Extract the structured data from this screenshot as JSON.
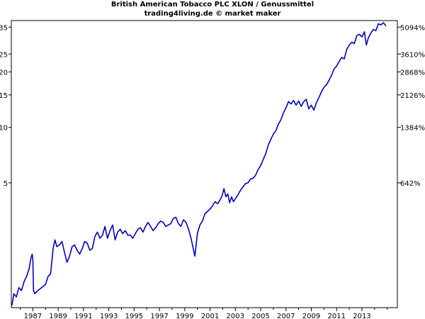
{
  "header": {
    "title": "British American Tobacco PLC XLON / Genussmittel",
    "subtitle": "trading4living.de © market maker"
  },
  "chart_data": {
    "type": "line",
    "scale": "log",
    "grid": false,
    "line_color": "#0000cc",
    "xlim": [
      1985.3,
      2015.8
    ],
    "ylim": [
      1.05,
      38
    ],
    "x_ticks": [
      1987,
      1989,
      1991,
      1993,
      1995,
      1997,
      1999,
      2001,
      2003,
      2005,
      2007,
      2009,
      2011,
      2013
    ],
    "x_tick_labels": [
      "1987",
      "1989",
      "1991",
      "1993",
      "1995",
      "1997",
      "1999",
      "2001",
      "2003",
      "2005",
      "2007",
      "2009",
      "2011",
      "2013"
    ],
    "y_ticks_left": [
      {
        "value": 35,
        "label": "35"
      },
      {
        "value": 25,
        "label": "25"
      },
      {
        "value": 20,
        "label": "20"
      },
      {
        "value": 15,
        "label": "15"
      },
      {
        "value": 10,
        "label": "10"
      },
      {
        "value": 5,
        "label": "5"
      }
    ],
    "y_ticks_right": [
      {
        "value": 35,
        "label": "5094%"
      },
      {
        "value": 25,
        "label": "3610%"
      },
      {
        "value": 20,
        "label": "2868%"
      },
      {
        "value": 15,
        "label": "2126%"
      },
      {
        "value": 10,
        "label": "1384%"
      },
      {
        "value": 5,
        "label": "642%"
      }
    ],
    "series": [
      {
        "values": [
          [
            1985.35,
            1.08
          ],
          [
            1985.5,
            1.25
          ],
          [
            1985.7,
            1.2
          ],
          [
            1985.9,
            1.35
          ],
          [
            1986.1,
            1.3
          ],
          [
            1986.3,
            1.45
          ],
          [
            1986.5,
            1.55
          ],
          [
            1986.7,
            1.7
          ],
          [
            1986.85,
            1.95
          ],
          [
            1986.95,
            2.05
          ],
          [
            1987.0,
            1.9
          ],
          [
            1987.05,
            1.3
          ],
          [
            1987.15,
            1.25
          ],
          [
            1987.4,
            1.3
          ],
          [
            1987.7,
            1.35
          ],
          [
            1988.0,
            1.4
          ],
          [
            1988.2,
            1.55
          ],
          [
            1988.4,
            1.6
          ],
          [
            1988.6,
            2.2
          ],
          [
            1988.75,
            2.45
          ],
          [
            1988.9,
            2.25
          ],
          [
            1989.1,
            2.3
          ],
          [
            1989.3,
            2.4
          ],
          [
            1989.5,
            2.1
          ],
          [
            1989.7,
            1.85
          ],
          [
            1989.9,
            2.0
          ],
          [
            1990.1,
            2.25
          ],
          [
            1990.3,
            2.3
          ],
          [
            1990.5,
            2.15
          ],
          [
            1990.7,
            2.05
          ],
          [
            1990.9,
            2.2
          ],
          [
            1991.1,
            2.4
          ],
          [
            1991.3,
            2.35
          ],
          [
            1991.5,
            2.15
          ],
          [
            1991.7,
            2.2
          ],
          [
            1991.9,
            2.55
          ],
          [
            1992.1,
            2.7
          ],
          [
            1992.3,
            2.5
          ],
          [
            1992.5,
            2.6
          ],
          [
            1992.7,
            2.9
          ],
          [
            1992.9,
            2.5
          ],
          [
            1993.1,
            2.75
          ],
          [
            1993.3,
            2.95
          ],
          [
            1993.5,
            2.45
          ],
          [
            1993.7,
            2.7
          ],
          [
            1993.9,
            2.8
          ],
          [
            1994.1,
            2.65
          ],
          [
            1994.3,
            2.75
          ],
          [
            1994.5,
            2.6
          ],
          [
            1994.7,
            2.6
          ],
          [
            1994.9,
            2.5
          ],
          [
            1995.1,
            2.65
          ],
          [
            1995.3,
            2.8
          ],
          [
            1995.5,
            2.85
          ],
          [
            1995.7,
            2.7
          ],
          [
            1995.9,
            2.9
          ],
          [
            1996.1,
            3.05
          ],
          [
            1996.3,
            2.9
          ],
          [
            1996.5,
            2.75
          ],
          [
            1996.7,
            2.85
          ],
          [
            1996.9,
            3.0
          ],
          [
            1997.1,
            3.1
          ],
          [
            1997.3,
            3.05
          ],
          [
            1997.5,
            2.9
          ],
          [
            1997.7,
            2.95
          ],
          [
            1997.9,
            3.0
          ],
          [
            1998.1,
            3.2
          ],
          [
            1998.3,
            3.25
          ],
          [
            1998.5,
            3.0
          ],
          [
            1998.7,
            2.9
          ],
          [
            1998.9,
            3.15
          ],
          [
            1999.1,
            3.05
          ],
          [
            1999.3,
            2.8
          ],
          [
            1999.5,
            2.5
          ],
          [
            1999.7,
            2.15
          ],
          [
            1999.8,
            2.0
          ],
          [
            1999.9,
            2.3
          ],
          [
            2000.0,
            2.65
          ],
          [
            2000.2,
            2.95
          ],
          [
            2000.4,
            3.1
          ],
          [
            2000.6,
            3.4
          ],
          [
            2000.8,
            3.5
          ],
          [
            2001.0,
            3.6
          ],
          [
            2001.2,
            3.75
          ],
          [
            2001.4,
            3.95
          ],
          [
            2001.6,
            3.85
          ],
          [
            2001.8,
            4.05
          ],
          [
            2001.95,
            4.25
          ],
          [
            2002.1,
            4.65
          ],
          [
            2002.25,
            4.2
          ],
          [
            2002.4,
            4.35
          ],
          [
            2002.55,
            3.9
          ],
          [
            2002.7,
            4.2
          ],
          [
            2002.85,
            3.95
          ],
          [
            2003.0,
            4.1
          ],
          [
            2003.2,
            4.3
          ],
          [
            2003.4,
            4.55
          ],
          [
            2003.6,
            4.75
          ],
          [
            2003.8,
            4.95
          ],
          [
            2004.0,
            5.0
          ],
          [
            2004.2,
            5.25
          ],
          [
            2004.4,
            5.3
          ],
          [
            2004.6,
            5.5
          ],
          [
            2004.8,
            5.9
          ],
          [
            2005.0,
            6.2
          ],
          [
            2005.2,
            6.7
          ],
          [
            2005.4,
            7.2
          ],
          [
            2005.6,
            8.0
          ],
          [
            2005.8,
            8.6
          ],
          [
            2006.0,
            9.2
          ],
          [
            2006.2,
            9.6
          ],
          [
            2006.4,
            10.4
          ],
          [
            2006.6,
            11.0
          ],
          [
            2006.8,
            12.0
          ],
          [
            2007.0,
            12.8
          ],
          [
            2007.2,
            13.8
          ],
          [
            2007.4,
            13.4
          ],
          [
            2007.6,
            14.0
          ],
          [
            2007.8,
            13.2
          ],
          [
            2008.0,
            13.9
          ],
          [
            2008.2,
            13.0
          ],
          [
            2008.4,
            13.8
          ],
          [
            2008.6,
            14.2
          ],
          [
            2008.8,
            12.6
          ],
          [
            2009.0,
            13.2
          ],
          [
            2009.2,
            12.4
          ],
          [
            2009.4,
            13.6
          ],
          [
            2009.6,
            14.5
          ],
          [
            2009.8,
            15.6
          ],
          [
            2010.0,
            16.5
          ],
          [
            2010.2,
            17.0
          ],
          [
            2010.4,
            18.0
          ],
          [
            2010.6,
            19.2
          ],
          [
            2010.8,
            20.8
          ],
          [
            2011.0,
            21.5
          ],
          [
            2011.2,
            22.8
          ],
          [
            2011.4,
            24.0
          ],
          [
            2011.6,
            23.5
          ],
          [
            2011.8,
            26.5
          ],
          [
            2012.0,
            28.0
          ],
          [
            2012.2,
            29.0
          ],
          [
            2012.4,
            28.5
          ],
          [
            2012.6,
            31.5
          ],
          [
            2012.8,
            32.0
          ],
          [
            2013.0,
            31.0
          ],
          [
            2013.2,
            33.0
          ],
          [
            2013.35,
            28.0
          ],
          [
            2013.5,
            30.5
          ],
          [
            2013.7,
            32.5
          ],
          [
            2013.9,
            34.0
          ],
          [
            2014.1,
            33.5
          ],
          [
            2014.3,
            36.5
          ],
          [
            2014.5,
            36.0
          ],
          [
            2014.7,
            37.0
          ],
          [
            2014.9,
            35.5
          ]
        ]
      }
    ]
  }
}
